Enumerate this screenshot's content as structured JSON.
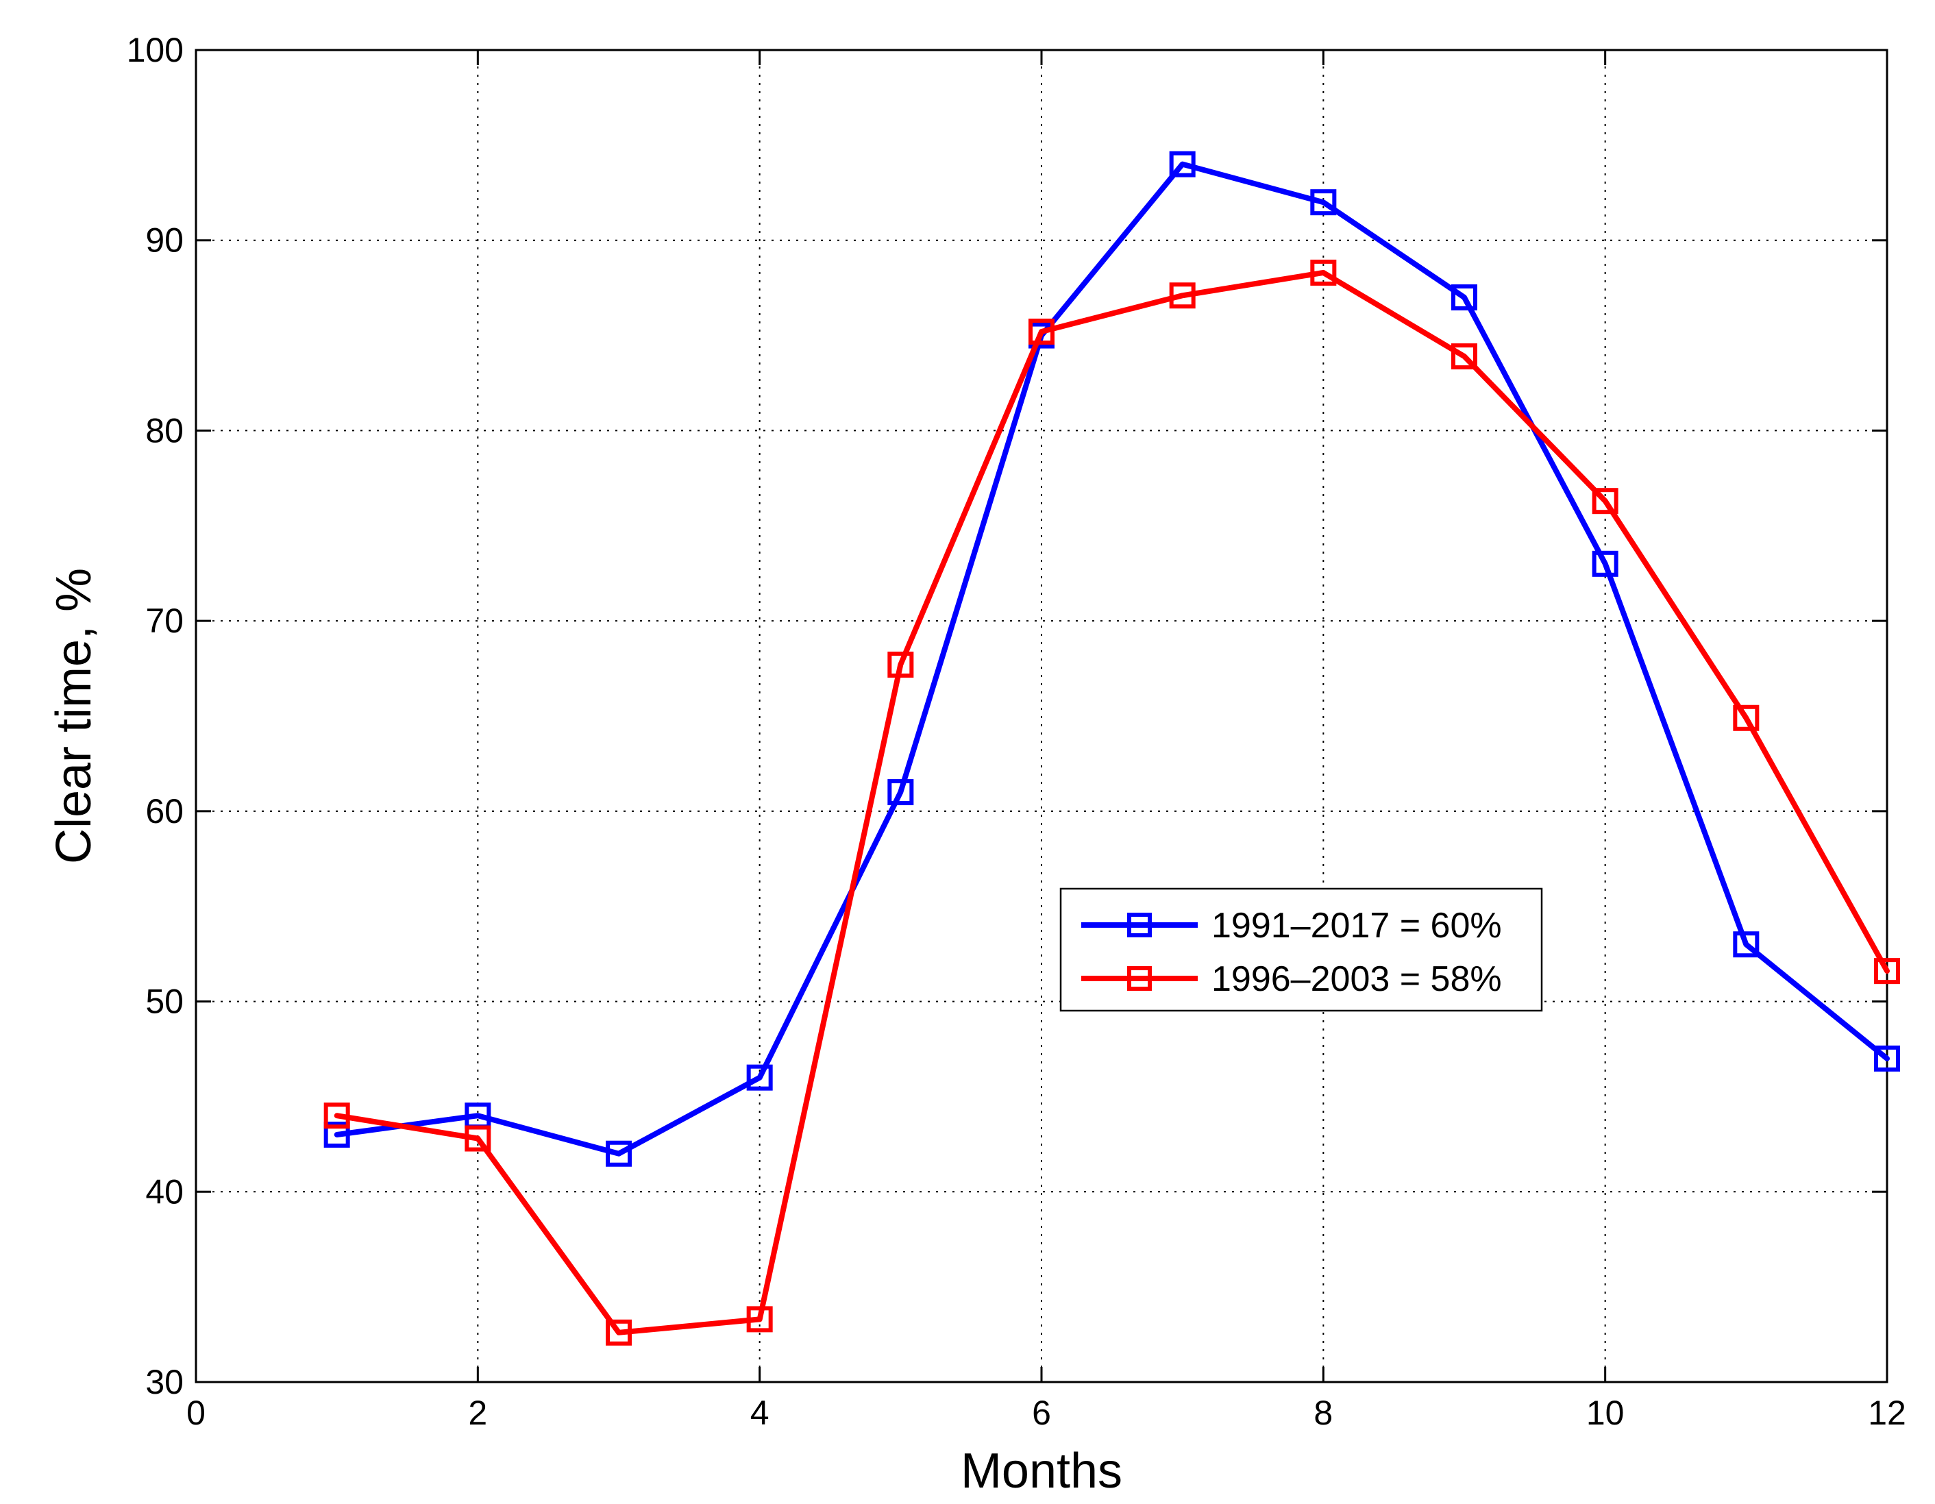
{
  "chart_data": {
    "type": "line",
    "xlabel": "Months",
    "ylabel": "Clear time, %",
    "xlim": [
      0,
      12
    ],
    "ylim": [
      30,
      100
    ],
    "xticks": [
      0,
      2,
      4,
      6,
      8,
      10,
      12
    ],
    "yticks": [
      30,
      40,
      50,
      60,
      70,
      80,
      90,
      100
    ],
    "grid": true,
    "legend_position": "center-right",
    "marker": "square",
    "series": [
      {
        "name": "1991–2017 = 60%",
        "color": "#0000ff",
        "x": [
          1,
          2,
          3,
          4,
          5,
          6,
          7,
          8,
          9,
          10,
          11,
          12
        ],
        "y": [
          43,
          44,
          42,
          46,
          61,
          85,
          94,
          92,
          87,
          73,
          53,
          47
        ]
      },
      {
        "name": "1996–2003 = 58%",
        "color": "#ff0000",
        "x": [
          1,
          2,
          3,
          4,
          5,
          6,
          7,
          8,
          9,
          10,
          11,
          12
        ],
        "y": [
          44,
          42.8,
          32.6,
          33.3,
          67.7,
          85.2,
          87.1,
          88.3,
          83.9,
          76.3,
          64.9,
          51.6
        ]
      }
    ]
  }
}
